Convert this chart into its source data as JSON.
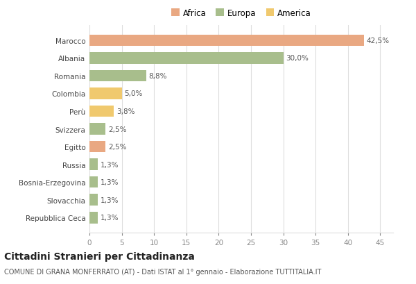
{
  "categories": [
    "Marocco",
    "Albania",
    "Romania",
    "Colombia",
    "Perù",
    "Svizzera",
    "Egitto",
    "Russia",
    "Bosnia-Erzegovina",
    "Slovacchia",
    "Repubblica Ceca"
  ],
  "values": [
    42.5,
    30.0,
    8.8,
    5.0,
    3.8,
    2.5,
    2.5,
    1.3,
    1.3,
    1.3,
    1.3
  ],
  "labels": [
    "42,5%",
    "30,0%",
    "8,8%",
    "5,0%",
    "3,8%",
    "2,5%",
    "2,5%",
    "1,3%",
    "1,3%",
    "1,3%",
    "1,3%"
  ],
  "colors": [
    "#e9a882",
    "#a8be8c",
    "#a8be8c",
    "#f0c96e",
    "#f0c96e",
    "#a8be8c",
    "#e9a882",
    "#a8be8c",
    "#a8be8c",
    "#a8be8c",
    "#a8be8c"
  ],
  "legend": [
    {
      "label": "Africa",
      "color": "#e9a882"
    },
    {
      "label": "Europa",
      "color": "#a8be8c"
    },
    {
      "label": "America",
      "color": "#f0c96e"
    }
  ],
  "xlim": [
    0,
    47
  ],
  "xticks": [
    0,
    5,
    10,
    15,
    20,
    25,
    30,
    35,
    40,
    45
  ],
  "title": "Cittadini Stranieri per Cittadinanza",
  "subtitle": "COMUNE DI GRANA MONFERRATO (AT) - Dati ISTAT al 1° gennaio - Elaborazione TUTTITALIA.IT",
  "background_color": "#ffffff",
  "grid_color": "#dddddd",
  "bar_height": 0.65,
  "label_fontsize": 7.5,
  "ytick_fontsize": 7.5,
  "xtick_fontsize": 7.5,
  "title_fontsize": 10,
  "subtitle_fontsize": 7,
  "legend_fontsize": 8.5
}
